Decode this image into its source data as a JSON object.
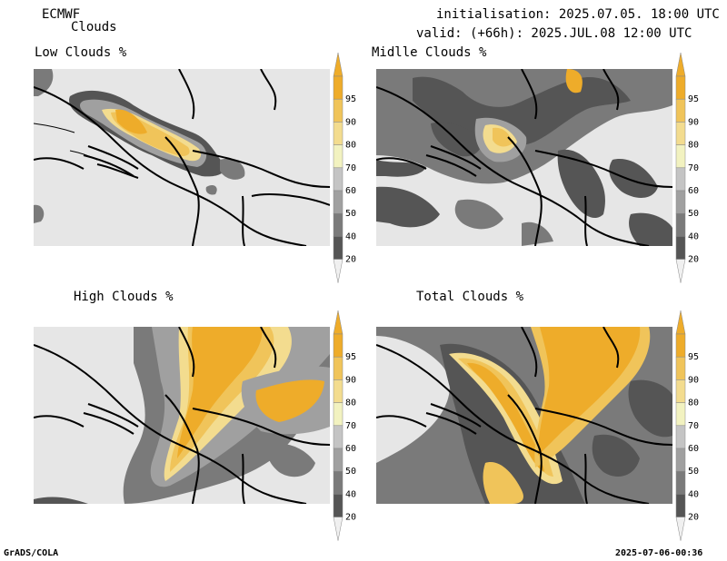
{
  "header": {
    "model": "ECMWF",
    "product": "Clouds",
    "init_line": "initialisation: 2025.07.05. 18:00 UTC",
    "valid_line": "valid: (+66h): 2025.JUL.08 12:00 UTC"
  },
  "panels": [
    {
      "id": "low",
      "title": "Low Clouds %"
    },
    {
      "id": "middle",
      "title": "Midlle Clouds %"
    },
    {
      "id": "high",
      "title": "High Clouds %"
    },
    {
      "id": "total",
      "title": "Total Clouds %"
    }
  ],
  "colorbar": {
    "levels": [
      "20",
      "40",
      "50",
      "60",
      "70",
      "80",
      "90",
      "95"
    ],
    "colors": [
      "#555555",
      "#7a7a7a",
      "#a0a0a0",
      "#c4c4c4",
      "#f2f2c0",
      "#f3dc8f",
      "#f0c45a",
      "#eeac2a"
    ],
    "under_color": "#f0f0f0",
    "over_color": "#eeac2a"
  },
  "background_color": "#e6e6e6",
  "footer": {
    "left": "GrADS/COLA",
    "right": "2025-07-06-00:36"
  }
}
